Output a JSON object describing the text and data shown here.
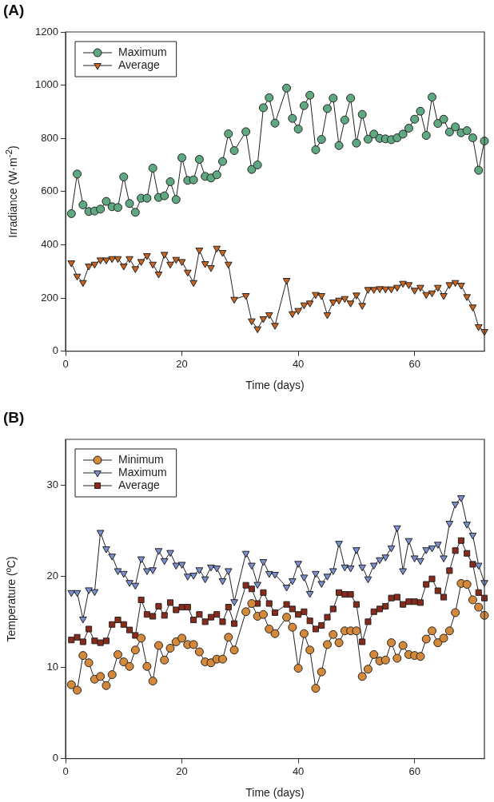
{
  "chart_data": [
    {
      "type": "line",
      "title": "(A)",
      "xlabel": "Time (days)",
      "ylabel": "Irradiance (W·m$^{-2}$)",
      "legend": "top left",
      "x": [
        1,
        2,
        3,
        4,
        5,
        6,
        7,
        8,
        9,
        10,
        11,
        12,
        13,
        14,
        15,
        16,
        17,
        18,
        19,
        20,
        21,
        22,
        23,
        24,
        25,
        26,
        27,
        28,
        29,
        31,
        32,
        33,
        34,
        35,
        36,
        38,
        39,
        40,
        41,
        42,
        43,
        44,
        45,
        46,
        47,
        48,
        49,
        50,
        51,
        52,
        53,
        54,
        55,
        56,
        57,
        58,
        59,
        60,
        61,
        62,
        63,
        64,
        65,
        66,
        67,
        68,
        69,
        70,
        71,
        72
      ],
      "series": [
        {
          "name": "Maximum",
          "color": "#5fa882",
          "marker": "circle",
          "values": [
            517,
            666,
            550,
            525,
            527,
            534,
            563,
            543,
            540,
            655,
            555,
            522,
            575,
            575,
            688,
            578,
            584,
            637,
            570,
            727,
            642,
            644,
            721,
            657,
            651,
            663,
            713,
            817,
            754,
            825,
            683,
            700,
            915,
            953,
            857,
            989,
            875,
            835,
            923,
            962,
            757,
            796,
            912,
            951,
            773,
            869,
            951,
            782,
            890,
            797,
            816,
            800,
            798,
            795,
            802,
            816,
            838,
            872,
            902,
            811,
            955,
            856,
            872,
            824,
            843,
            821,
            829,
            802,
            680,
            790
          ]
        },
        {
          "name": "Average",
          "color": "#c8641e",
          "marker": "triangle",
          "values": [
            332,
            282,
            258,
            320,
            327,
            343,
            343,
            348,
            348,
            320,
            348,
            310,
            337,
            359,
            327,
            290,
            364,
            327,
            345,
            337,
            297,
            258,
            380,
            329,
            314,
            387,
            371,
            327,
            195,
            209,
            114,
            84,
            122,
            137,
            97,
            266,
            141,
            153,
            174,
            181,
            213,
            209,
            137,
            185,
            192,
            198,
            181,
            211,
            172,
            232,
            232,
            235,
            234,
            234,
            240,
            255,
            250,
            229,
            240,
            213,
            219,
            240,
            209,
            250,
            258,
            248,
            205,
            166,
            92,
            74
          ]
        }
      ],
      "xlim": [
        0,
        72
      ],
      "xticks": [
        0,
        20,
        40,
        60
      ],
      "ylim": [
        0,
        1200
      ],
      "yticks": [
        0,
        200,
        400,
        600,
        800,
        1000,
        1200
      ]
    },
    {
      "type": "line",
      "title": "(B)",
      "xlabel": "Time (days)",
      "ylabel": "Temperature (ºC)",
      "legend": "top left",
      "x": [
        1,
        2,
        3,
        4,
        5,
        6,
        7,
        8,
        9,
        10,
        11,
        12,
        13,
        14,
        15,
        16,
        17,
        18,
        19,
        20,
        21,
        22,
        23,
        24,
        25,
        26,
        27,
        28,
        29,
        31,
        32,
        33,
        34,
        35,
        36,
        38,
        39,
        40,
        41,
        42,
        43,
        44,
        45,
        46,
        47,
        48,
        49,
        50,
        51,
        52,
        53,
        54,
        55,
        56,
        57,
        58,
        59,
        60,
        61,
        62,
        63,
        64,
        65,
        66,
        67,
        68,
        69,
        70,
        71,
        72
      ],
      "series": [
        {
          "name": "Minimum",
          "color": "#d4893a",
          "marker": "circle",
          "values": [
            8.1,
            7.5,
            11.3,
            10.5,
            8.7,
            9.0,
            8.0,
            9.2,
            11.4,
            10.6,
            10.1,
            11.9,
            13.2,
            10.1,
            8.5,
            12.4,
            10.8,
            12.1,
            12.8,
            13.2,
            12.5,
            12.5,
            11.7,
            10.6,
            10.5,
            10.9,
            10.9,
            13.3,
            11.9,
            16.1,
            17.0,
            15.6,
            15.8,
            14.2,
            13.7,
            15.5,
            14.4,
            9.9,
            13.7,
            11.9,
            7.7,
            9.5,
            12.5,
            13.6,
            12.7,
            14.0,
            14.0,
            14.0,
            9.0,
            9.8,
            11.4,
            10.7,
            10.8,
            12.7,
            11.0,
            12.4,
            11.4,
            11.3,
            11.2,
            13.1,
            14.0,
            12.7,
            13.2,
            14.0,
            16.0,
            19.2,
            19.1,
            17.4,
            16.6,
            15.7
          ]
        },
        {
          "name": "Maximum",
          "color": "#7b90d0",
          "marker": "triangle",
          "values": [
            18.2,
            18.2,
            15.3,
            18.5,
            18.3,
            24.8,
            23.0,
            22.2,
            20.6,
            20.3,
            19.3,
            19.0,
            21.9,
            20.6,
            20.7,
            22.8,
            21.7,
            22.6,
            21.2,
            21.3,
            20.0,
            20.1,
            20.7,
            19.7,
            21.0,
            20.9,
            19.5,
            20.6,
            17.2,
            22.5,
            21.2,
            19.1,
            21.6,
            20.3,
            20.2,
            18.8,
            19.5,
            21.4,
            19.9,
            18.1,
            20.3,
            19.2,
            20.0,
            20.6,
            23.6,
            21.0,
            20.9,
            22.9,
            21.0,
            19.7,
            21.2,
            21.8,
            22.1,
            23.1,
            25.3,
            20.6,
            23.9,
            22.0,
            21.7,
            22.9,
            23.1,
            23.5,
            22.0,
            25.8,
            27.9,
            28.6,
            25.7,
            24.5,
            21.2,
            19.3
          ]
        },
        {
          "name": "Average",
          "color": "#8a2a1a",
          "marker": "square",
          "values": [
            13.0,
            13.3,
            12.8,
            14.2,
            12.9,
            12.7,
            12.9,
            14.7,
            15.2,
            14.7,
            14.1,
            13.5,
            17.4,
            15.8,
            15.6,
            16.7,
            15.7,
            17.1,
            16.3,
            16.6,
            16.6,
            15.2,
            15.8,
            15.0,
            15.5,
            15.8,
            15.0,
            16.6,
            14.8,
            19.0,
            18.6,
            17.0,
            18.2,
            17.0,
            16.0,
            16.9,
            16.4,
            15.8,
            16.1,
            15.1,
            14.2,
            14.6,
            15.5,
            16.4,
            18.2,
            18.0,
            18.0,
            16.9,
            12.8,
            15.0,
            16.1,
            16.4,
            16.7,
            17.6,
            17.7,
            16.9,
            17.2,
            17.2,
            17.1,
            19.1,
            19.7,
            18.4,
            17.7,
            20.6,
            22.8,
            23.9,
            22.5,
            21.3,
            18.2,
            17.6
          ]
        }
      ],
      "xlim": [
        0,
        72
      ],
      "xticks": [
        0,
        20,
        40,
        60
      ],
      "ylim": [
        0,
        35
      ],
      "yticks": [
        0,
        10,
        20,
        30
      ]
    }
  ]
}
